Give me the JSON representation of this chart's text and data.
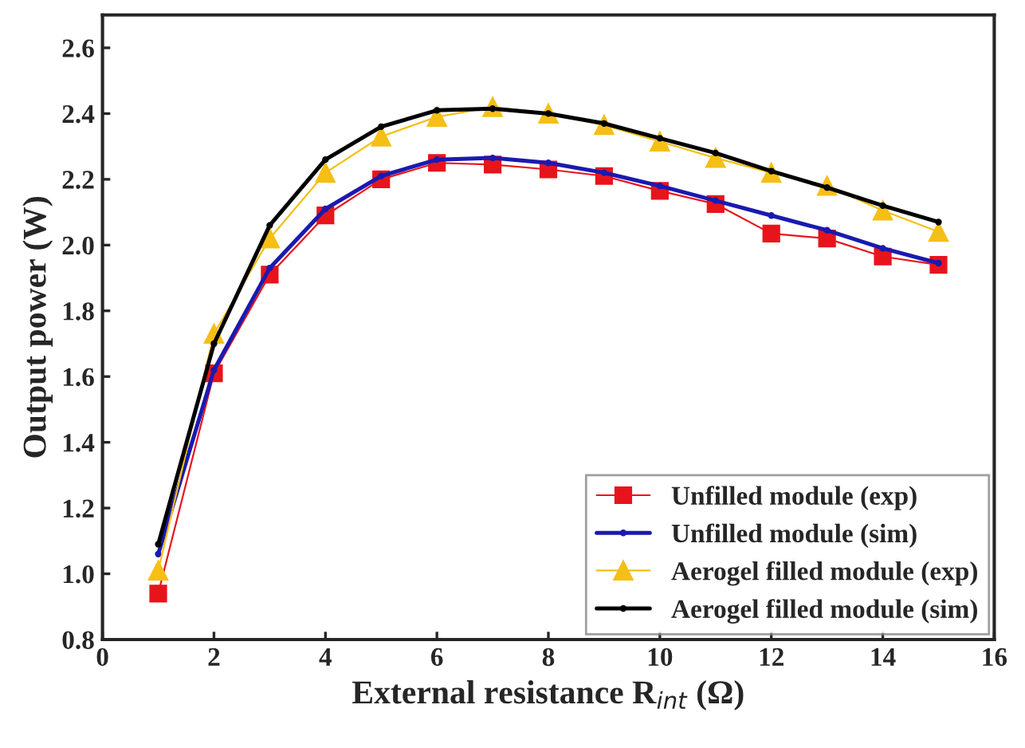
{
  "chart_data": {
    "type": "line",
    "xlabel": "External resistance R$_{int}$ (Ω)",
    "ylabel": "Output power (W)",
    "x": [
      1,
      2,
      3,
      4,
      5,
      6,
      7,
      8,
      9,
      10,
      11,
      12,
      13,
      14,
      15
    ],
    "series": [
      {
        "name": "Unfilled module (exp)",
        "color": "#e8141c",
        "marker": "square",
        "values": [
          0.94,
          1.61,
          1.91,
          2.09,
          2.2,
          2.25,
          2.245,
          2.23,
          2.21,
          2.165,
          2.125,
          2.035,
          2.02,
          1.965,
          1.94
        ]
      },
      {
        "name": "Unfilled module (sim)",
        "color": "#1a1ab0",
        "marker": "circle",
        "values": [
          1.06,
          1.62,
          1.93,
          2.11,
          2.21,
          2.26,
          2.265,
          2.25,
          2.22,
          2.18,
          2.135,
          2.09,
          2.045,
          1.99,
          1.945
        ]
      },
      {
        "name": "Aerogel filled module (exp)",
        "color": "#f5bf16",
        "marker": "triangle",
        "values": [
          1.01,
          1.73,
          2.02,
          2.22,
          2.33,
          2.39,
          2.42,
          2.4,
          2.365,
          2.315,
          2.265,
          2.22,
          2.18,
          2.105,
          2.04
        ]
      },
      {
        "name": "Aerogel filled module (sim)",
        "color": "#000000",
        "marker": "circle",
        "values": [
          1.09,
          1.7,
          2.06,
          2.26,
          2.36,
          2.41,
          2.415,
          2.4,
          2.37,
          2.325,
          2.28,
          2.225,
          2.175,
          2.12,
          2.07
        ]
      }
    ],
    "xlim": [
      0,
      16
    ],
    "xticks": [
      0,
      2,
      4,
      6,
      8,
      10,
      12,
      14,
      16
    ],
    "ylim": [
      0.8,
      2.7
    ],
    "yticks": [
      {
        "value": 0.8,
        "label": "0.8"
      },
      {
        "value": 1.0,
        "label": "1.0"
      },
      {
        "value": 1.2,
        "label": "1.2"
      },
      {
        "value": 1.4,
        "label": "1.4"
      },
      {
        "value": 1.6,
        "label": "1.6"
      },
      {
        "value": 1.8,
        "label": "1.8"
      },
      {
        "value": 2.0,
        "label": "2.0"
      },
      {
        "value": 2.2,
        "label": "2.2"
      },
      {
        "value": 2.4,
        "label": "2.4"
      },
      {
        "value": 2.6,
        "label": "2.6"
      }
    ],
    "legend": "bottom right",
    "grid": false
  }
}
